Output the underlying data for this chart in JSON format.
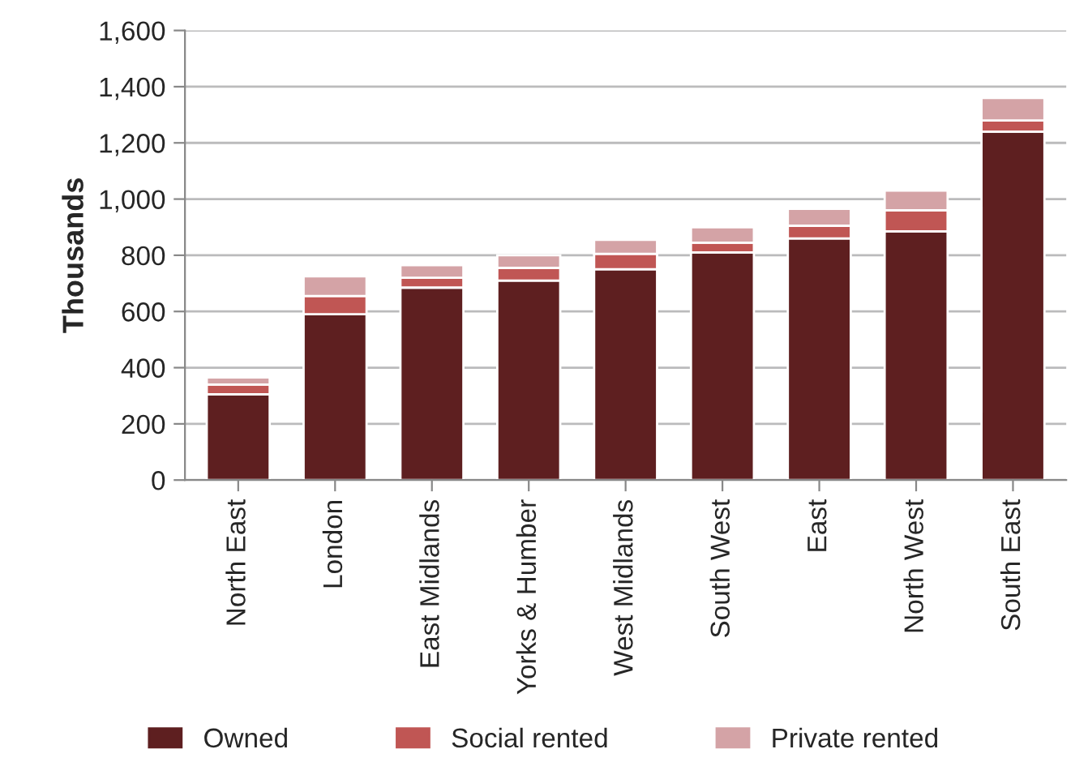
{
  "chart_data": {
    "type": "bar",
    "stacked": true,
    "ylabel": "Thousands",
    "categories": [
      "North East",
      "London",
      "East Midlands",
      "Yorks & Humber",
      "West Midlands",
      "South West",
      "East",
      "North West",
      "South East"
    ],
    "series": [
      {
        "name": "Owned",
        "color": "#5e1f20",
        "values": [
          305,
          590,
          685,
          710,
          750,
          810,
          860,
          885,
          1240
        ]
      },
      {
        "name": "Social rented",
        "color": "#c05654",
        "values": [
          35,
          65,
          35,
          45,
          55,
          35,
          45,
          75,
          40
        ]
      },
      {
        "name": "Private rented",
        "color": "#d4a3a6",
        "values": [
          25,
          70,
          45,
          45,
          50,
          55,
          60,
          70,
          80
        ]
      }
    ],
    "ylim": [
      0,
      1600
    ],
    "yticks": [
      {
        "value": 0,
        "label": "0"
      },
      {
        "value": 200,
        "label": "200"
      },
      {
        "value": 400,
        "label": "400"
      },
      {
        "value": 600,
        "label": "600"
      },
      {
        "value": 800,
        "label": "800"
      },
      {
        "value": 1000,
        "label": "1,000"
      },
      {
        "value": 1200,
        "label": "1,200"
      },
      {
        "value": 1400,
        "label": "1,400"
      },
      {
        "value": 1600,
        "label": "1,600"
      }
    ],
    "grid": "y",
    "legend": "bottom"
  }
}
